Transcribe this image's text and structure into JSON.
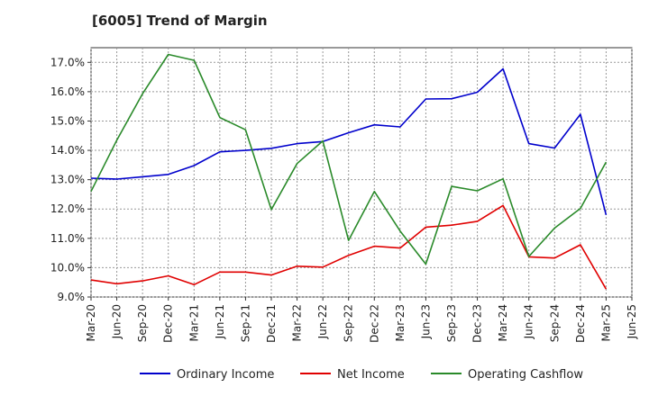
{
  "chart_data": {
    "type": "line",
    "title": "[6005]  Trend of Margin",
    "xlabel": "",
    "ylabel": "",
    "x": [
      "Mar-20",
      "Jun-20",
      "Sep-20",
      "Dec-20",
      "Mar-21",
      "Jun-21",
      "Sep-21",
      "Dec-21",
      "Mar-22",
      "Jun-22",
      "Sep-22",
      "Dec-22",
      "Mar-23",
      "Jun-23",
      "Sep-23",
      "Dec-23",
      "Mar-24",
      "Jun-24",
      "Sep-24",
      "Dec-24",
      "Mar-25",
      "Jun-25"
    ],
    "ylim": [
      9.0,
      17.5
    ],
    "yticks": [
      9.0,
      10.0,
      11.0,
      12.0,
      13.0,
      14.0,
      15.0,
      16.0,
      17.0
    ],
    "ytick_labels": [
      "9.0%",
      "10.0%",
      "11.0%",
      "12.0%",
      "13.0%",
      "14.0%",
      "15.0%",
      "16.0%",
      "17.0%"
    ],
    "grid": true,
    "legend_position": "bottom",
    "series": [
      {
        "name": "Ordinary Income",
        "color": "#0000cc",
        "values": [
          13.05,
          13.02,
          13.1,
          13.18,
          13.48,
          13.95,
          14.0,
          14.07,
          14.23,
          14.3,
          14.6,
          14.87,
          14.8,
          15.75,
          15.76,
          15.98,
          16.78,
          14.23,
          14.08,
          15.23,
          11.8,
          null
        ]
      },
      {
        "name": "Net Income",
        "color": "#e00000",
        "values": [
          9.58,
          9.45,
          9.55,
          9.72,
          9.42,
          9.85,
          9.85,
          9.75,
          10.05,
          10.02,
          10.42,
          10.73,
          10.67,
          11.38,
          11.45,
          11.58,
          12.12,
          10.37,
          10.33,
          10.78,
          9.27,
          null
        ]
      },
      {
        "name": "Operating Cashflow",
        "color": "#2a8a2a",
        "values": [
          12.6,
          14.35,
          15.93,
          17.27,
          17.07,
          15.12,
          14.7,
          11.98,
          13.55,
          14.32,
          10.93,
          12.6,
          11.25,
          10.12,
          12.77,
          12.62,
          13.03,
          10.38,
          11.35,
          12.02,
          13.6,
          null
        ]
      }
    ]
  }
}
